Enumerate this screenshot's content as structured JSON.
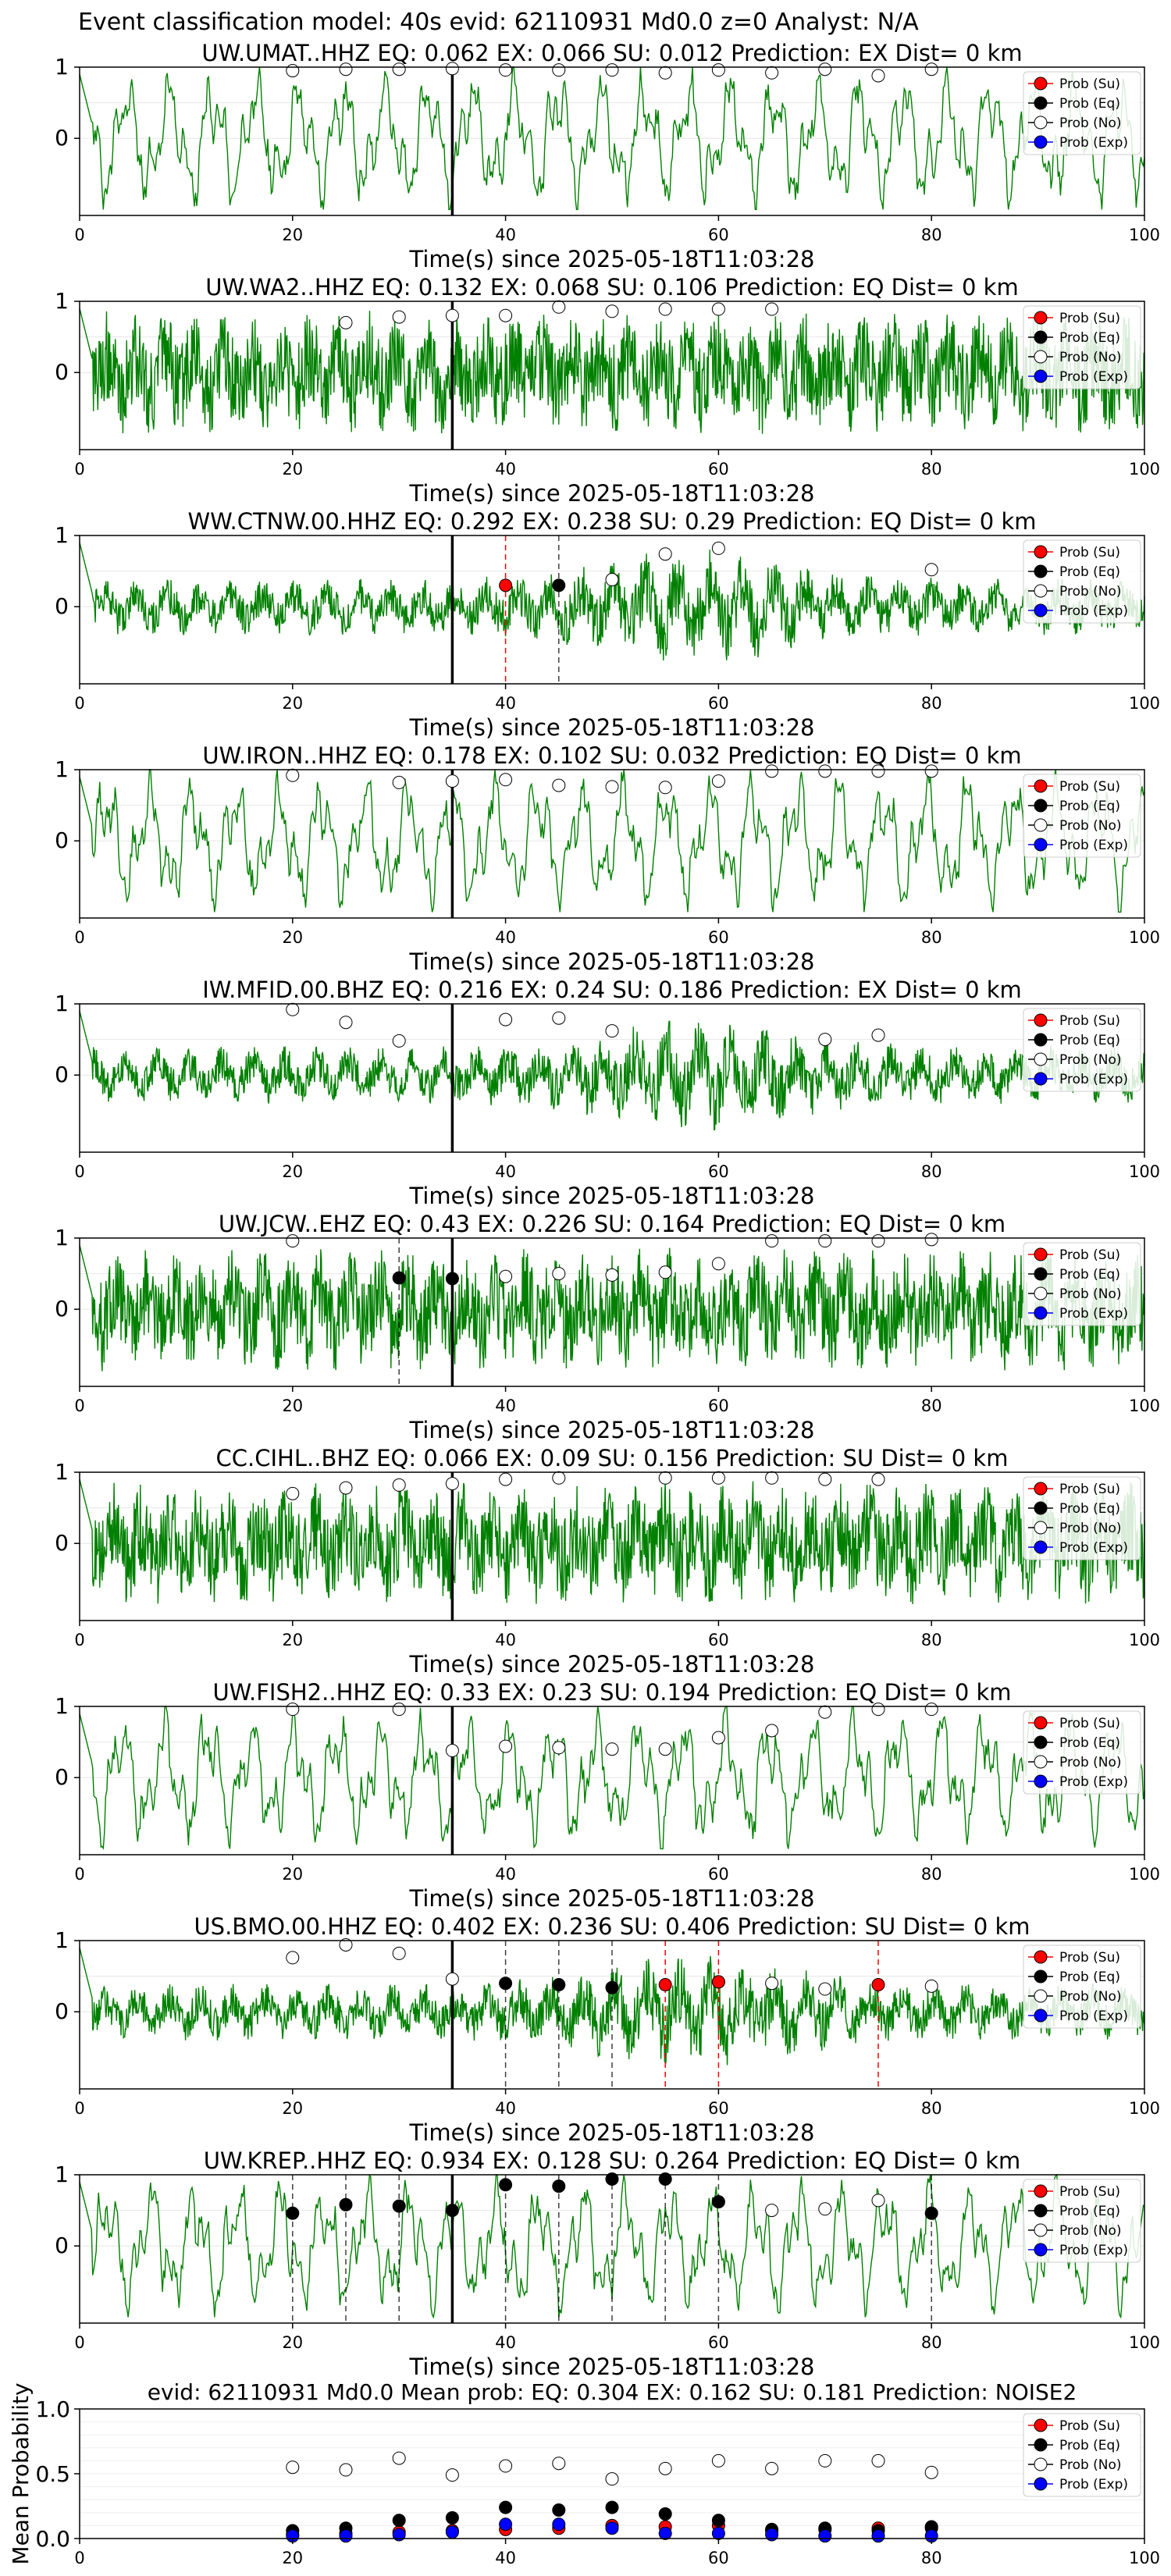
{
  "suptitle": "Event classification model: 40s evid: 62110931 Md0.0 z=0 Analyst: N/A",
  "legend_entries": [
    "Prob (Su)",
    "Prob (Eq)",
    "Prob (No)",
    "Prob (Exp)"
  ],
  "colors": {
    "su": "#ff0000",
    "eq": "#000000",
    "no": "#ffffff",
    "exp": "#0000ff",
    "wave": "#008000",
    "su_pick": "#ff0000",
    "eq_pick": "#000000"
  },
  "chart_data": [
    {
      "type": "line",
      "title": "UW.UMAT..HHZ   EQ: 0.062  EX: 0.066  SU: 0.012   Prediction: EX    Dist= 0 km",
      "xlabel": "Time(s) since 2025-05-18T11:03:28",
      "xlim": [
        0,
        100
      ],
      "ylim": [
        -1,
        1
      ],
      "x_ticks": [
        "0",
        "20",
        "40",
        "60",
        "80",
        "100"
      ],
      "y_ticks": [
        "1",
        "0"
      ],
      "wave_style": "low",
      "event_line": 35,
      "prob_no": [
        [
          20,
          0.95
        ],
        [
          25,
          0.97
        ],
        [
          30,
          0.97
        ],
        [
          35,
          0.98
        ],
        [
          40,
          0.96
        ],
        [
          45,
          0.96
        ],
        [
          50,
          0.96
        ],
        [
          55,
          0.92
        ],
        [
          60,
          0.96
        ],
        [
          65,
          0.92
        ],
        [
          70,
          0.97
        ],
        [
          75,
          0.88
        ],
        [
          80,
          0.97
        ]
      ],
      "prob_eq": [],
      "prob_su": [],
      "prob_exp": [],
      "eq_picks": [],
      "su_picks": []
    },
    {
      "type": "line",
      "title": "UW.WA2..HHZ   EQ: 0.132  EX: 0.068  SU: 0.106   Prediction: EQ    Dist= 0 km",
      "xlabel": "Time(s) since 2025-05-18T11:03:28",
      "xlim": [
        0,
        100
      ],
      "ylim": [
        -1,
        1
      ],
      "x_ticks": [
        "0",
        "20",
        "40",
        "60",
        "80",
        "100"
      ],
      "y_ticks": [
        "1",
        "0"
      ],
      "wave_style": "high",
      "event_line": 35,
      "prob_no": [
        [
          25,
          0.7
        ],
        [
          30,
          0.78
        ],
        [
          35,
          0.8
        ],
        [
          40,
          0.8
        ],
        [
          45,
          0.92
        ],
        [
          50,
          0.86
        ],
        [
          55,
          0.89
        ],
        [
          60,
          0.89
        ],
        [
          65,
          0.89
        ]
      ],
      "prob_eq": [],
      "prob_su": [],
      "prob_exp": [],
      "eq_picks": [],
      "su_picks": []
    },
    {
      "type": "line",
      "title": "WW.CTNW.00.HHZ   EQ: 0.292  EX: 0.238  SU: 0.29   Prediction: EQ    Dist= 0 km",
      "xlabel": "Time(s) since 2025-05-18T11:03:28",
      "xlim": [
        0,
        100
      ],
      "ylim": [
        -1,
        1
      ],
      "x_ticks": [
        "0",
        "20",
        "40",
        "60",
        "80",
        "100"
      ],
      "y_ticks": [
        "1",
        "0"
      ],
      "wave_style": "mixed",
      "event_line": 35,
      "prob_no": [
        [
          50,
          0.38
        ],
        [
          55,
          0.74
        ],
        [
          60,
          0.82
        ],
        [
          80,
          0.52
        ]
      ],
      "prob_eq": [
        [
          45,
          0.3
        ]
      ],
      "prob_su": [
        [
          40,
          0.3
        ]
      ],
      "prob_exp": [],
      "eq_picks": [
        45
      ],
      "su_picks": [
        40
      ]
    },
    {
      "type": "line",
      "title": "UW.IRON..HHZ   EQ: 0.178  EX: 0.102  SU: 0.032   Prediction: EQ    Dist= 0 km",
      "xlabel": "Time(s) since 2025-05-18T11:03:28",
      "xlim": [
        0,
        100
      ],
      "ylim": [
        -1,
        1
      ],
      "x_ticks": [
        "0",
        "20",
        "40",
        "60",
        "80",
        "100"
      ],
      "y_ticks": [
        "1",
        "0"
      ],
      "wave_style": "low",
      "event_line": 35,
      "prob_no": [
        [
          20,
          0.92
        ],
        [
          30,
          0.82
        ],
        [
          35,
          0.84
        ],
        [
          40,
          0.86
        ],
        [
          45,
          0.78
        ],
        [
          50,
          0.76
        ],
        [
          55,
          0.75
        ],
        [
          60,
          0.84
        ],
        [
          65,
          0.98
        ],
        [
          70,
          0.98
        ],
        [
          75,
          0.98
        ],
        [
          80,
          0.98
        ]
      ],
      "prob_eq": [],
      "prob_su": [],
      "prob_exp": [],
      "eq_picks": [],
      "su_picks": []
    },
    {
      "type": "line",
      "title": "IW.MFID.00.BHZ   EQ: 0.216  EX: 0.24  SU: 0.186   Prediction: EX    Dist= 0 km",
      "xlabel": "Time(s) since 2025-05-18T11:03:28",
      "xlim": [
        0,
        100
      ],
      "ylim": [
        -1,
        1
      ],
      "x_ticks": [
        "0",
        "20",
        "40",
        "60",
        "80",
        "100"
      ],
      "y_ticks": [
        "1",
        "0"
      ],
      "wave_style": "mixed",
      "event_line": 35,
      "prob_no": [
        [
          20,
          0.92
        ],
        [
          25,
          0.74
        ],
        [
          30,
          0.48
        ],
        [
          40,
          0.78
        ],
        [
          45,
          0.8
        ],
        [
          50,
          0.62
        ],
        [
          70,
          0.5
        ],
        [
          75,
          0.56
        ]
      ],
      "prob_eq": [],
      "prob_su": [],
      "prob_exp": [],
      "eq_picks": [],
      "su_picks": []
    },
    {
      "type": "line",
      "title": "UW.JCW..EHZ   EQ: 0.43  EX: 0.226  SU: 0.164   Prediction: EQ    Dist= 0 km",
      "xlabel": "Time(s) since 2025-05-18T11:03:28",
      "xlim": [
        0,
        100
      ],
      "ylim": [
        -1,
        1
      ],
      "x_ticks": [
        "0",
        "20",
        "40",
        "60",
        "80",
        "100"
      ],
      "y_ticks": [
        "1",
        "0"
      ],
      "wave_style": "high",
      "event_line": 35,
      "prob_no": [
        [
          20,
          0.96
        ],
        [
          40,
          0.46
        ],
        [
          45,
          0.5
        ],
        [
          50,
          0.48
        ],
        [
          55,
          0.52
        ],
        [
          60,
          0.64
        ],
        [
          65,
          0.96
        ],
        [
          70,
          0.96
        ],
        [
          75,
          0.96
        ],
        [
          80,
          0.98
        ]
      ],
      "prob_eq": [
        [
          30,
          0.44
        ],
        [
          35,
          0.43
        ]
      ],
      "prob_su": [],
      "prob_exp": [],
      "eq_picks": [
        30
      ],
      "su_picks": []
    },
    {
      "type": "line",
      "title": "CC.CIHL..BHZ   EQ: 0.066  EX: 0.09  SU: 0.156   Prediction: SU    Dist= 0 km",
      "xlabel": "Time(s) since 2025-05-18T11:03:28",
      "xlim": [
        0,
        100
      ],
      "ylim": [
        -1,
        1
      ],
      "x_ticks": [
        "0",
        "20",
        "40",
        "60",
        "80",
        "100"
      ],
      "y_ticks": [
        "1",
        "0"
      ],
      "wave_style": "high",
      "event_line": 35,
      "prob_no": [
        [
          20,
          0.7
        ],
        [
          25,
          0.78
        ],
        [
          30,
          0.82
        ],
        [
          35,
          0.84
        ],
        [
          40,
          0.9
        ],
        [
          45,
          0.92
        ],
        [
          55,
          0.92
        ],
        [
          60,
          0.92
        ],
        [
          65,
          0.92
        ],
        [
          70,
          0.9
        ],
        [
          75,
          0.9
        ]
      ],
      "prob_eq": [],
      "prob_su": [],
      "prob_exp": [],
      "eq_picks": [],
      "su_picks": []
    },
    {
      "type": "line",
      "title": "UW.FISH2..HHZ   EQ: 0.33  EX: 0.23  SU: 0.194   Prediction: EQ    Dist= 0 km",
      "xlabel": "Time(s) since 2025-05-18T11:03:28",
      "xlim": [
        0,
        100
      ],
      "ylim": [
        -1,
        1
      ],
      "x_ticks": [
        "0",
        "20",
        "40",
        "60",
        "80",
        "100"
      ],
      "y_ticks": [
        "1",
        "0"
      ],
      "wave_style": "low",
      "event_line": 35,
      "prob_no": [
        [
          20,
          0.96
        ],
        [
          30,
          0.96
        ],
        [
          35,
          0.38
        ],
        [
          40,
          0.44
        ],
        [
          45,
          0.42
        ],
        [
          50,
          0.4
        ],
        [
          55,
          0.4
        ],
        [
          60,
          0.56
        ],
        [
          65,
          0.66
        ],
        [
          70,
          0.92
        ],
        [
          75,
          0.96
        ],
        [
          80,
          0.96
        ]
      ],
      "prob_eq": [],
      "prob_su": [],
      "prob_exp": [],
      "eq_picks": [],
      "su_picks": []
    },
    {
      "type": "line",
      "title": "US.BMO.00.HHZ   EQ: 0.402  EX: 0.236  SU: 0.406   Prediction: SU    Dist= 0 km",
      "xlabel": "Time(s) since 2025-05-18T11:03:28",
      "xlim": [
        0,
        100
      ],
      "ylim": [
        -1,
        1
      ],
      "x_ticks": [
        "0",
        "20",
        "40",
        "60",
        "80",
        "100"
      ],
      "y_ticks": [
        "1",
        "0"
      ],
      "wave_style": "mixed",
      "event_line": 35,
      "prob_no": [
        [
          20,
          0.76
        ],
        [
          25,
          0.94
        ],
        [
          30,
          0.82
        ],
        [
          35,
          0.46
        ],
        [
          65,
          0.4
        ],
        [
          70,
          0.32
        ],
        [
          80,
          0.36
        ]
      ],
      "prob_eq": [
        [
          40,
          0.4
        ],
        [
          45,
          0.38
        ],
        [
          50,
          0.34
        ],
        [
          60,
          0.42
        ]
      ],
      "prob_su": [
        [
          55,
          0.38
        ],
        [
          60,
          0.42
        ],
        [
          75,
          0.38
        ]
      ],
      "prob_exp": [],
      "eq_picks": [
        40,
        45,
        50
      ],
      "su_picks": [
        55,
        60,
        75
      ]
    },
    {
      "type": "line",
      "title": "UW.KREP..HHZ   EQ: 0.934  EX: 0.128  SU: 0.264   Prediction: EQ    Dist= 0 km",
      "xlabel": "Time(s) since 2025-05-18T11:03:28",
      "xlim": [
        0,
        100
      ],
      "ylim": [
        -1,
        1
      ],
      "x_ticks": [
        "0",
        "20",
        "40",
        "60",
        "80",
        "100"
      ],
      "y_ticks": [
        "1",
        "0"
      ],
      "wave_style": "low",
      "event_line": 35,
      "prob_no": [
        [
          65,
          0.5
        ],
        [
          70,
          0.52
        ],
        [
          75,
          0.64
        ]
      ],
      "prob_eq": [
        [
          20,
          0.46
        ],
        [
          25,
          0.58
        ],
        [
          30,
          0.56
        ],
        [
          35,
          0.5
        ],
        [
          40,
          0.86
        ],
        [
          45,
          0.84
        ],
        [
          50,
          0.94
        ],
        [
          55,
          0.94
        ],
        [
          60,
          0.62
        ],
        [
          80,
          0.46
        ]
      ],
      "prob_su": [],
      "prob_exp": [],
      "eq_picks": [
        20,
        25,
        30,
        40,
        45,
        50,
        55,
        60,
        80
      ],
      "su_picks": []
    },
    {
      "type": "scatter",
      "title": "evid: 62110931  Md0.0   Mean prob:   EQ: 0.304  EX: 0.162  SU: 0.181   Prediction: NOISE2",
      "ylabel": "Mean Probability",
      "xlim": [
        0,
        100
      ],
      "ylim": [
        0,
        1
      ],
      "x_ticks": [
        "0",
        "20",
        "40",
        "60",
        "80",
        "100"
      ],
      "y_ticks": [
        "0.0",
        "0.5",
        "1.0"
      ],
      "x": [
        20,
        25,
        30,
        35,
        40,
        45,
        50,
        55,
        60,
        65,
        70,
        75,
        80
      ],
      "series": [
        {
          "name": "Prob (Su)",
          "values": [
            0.03,
            0.04,
            0.05,
            0.06,
            0.07,
            0.08,
            0.1,
            0.09,
            0.1,
            0.06,
            0.07,
            0.08,
            0.08
          ]
        },
        {
          "name": "Prob (Eq)",
          "values": [
            0.06,
            0.08,
            0.14,
            0.16,
            0.24,
            0.22,
            0.24,
            0.19,
            0.14,
            0.07,
            0.08,
            0.06,
            0.09
          ]
        },
        {
          "name": "Prob (No)",
          "values": [
            0.55,
            0.53,
            0.62,
            0.49,
            0.56,
            0.58,
            0.46,
            0.54,
            0.6,
            0.54,
            0.6,
            0.6,
            0.51
          ]
        },
        {
          "name": "Prob (Exp)",
          "values": [
            0.02,
            0.02,
            0.03,
            0.05,
            0.11,
            0.11,
            0.08,
            0.04,
            0.04,
            0.03,
            0.02,
            0.02,
            0.02
          ]
        }
      ]
    }
  ]
}
